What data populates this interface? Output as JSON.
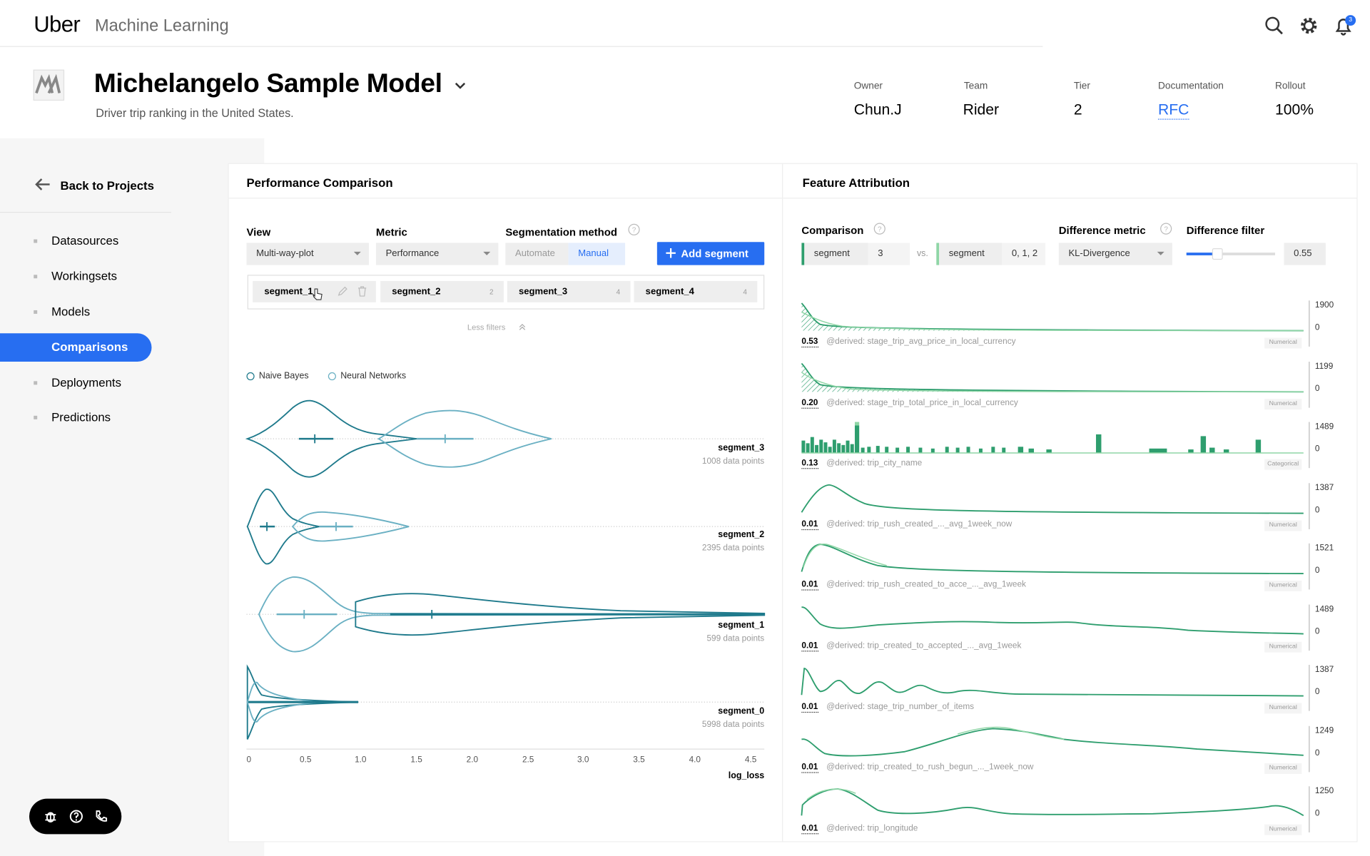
{
  "topbar": {
    "brand": "Uber",
    "product": "Machine Learning",
    "notifications": "3"
  },
  "model": {
    "title": "Michelangelo Sample  Model",
    "subtitle": "Driver trip ranking in the United States.",
    "meta": [
      {
        "label": "Owner",
        "value": "Chun.J"
      },
      {
        "label": "Team",
        "value": "Rider"
      },
      {
        "label": "Tier",
        "value": "2"
      },
      {
        "label": "Documentation",
        "value": "RFC"
      },
      {
        "label": "Rollout",
        "value": "100%"
      }
    ]
  },
  "sidebar": {
    "back": "Back to Projects",
    "items": [
      {
        "label": "Datasources"
      },
      {
        "label": "Workingsets"
      },
      {
        "label": "Models"
      },
      {
        "label": "Comparisons"
      },
      {
        "label": "Deployments"
      },
      {
        "label": "Predictions"
      }
    ],
    "active": "Comparisons"
  },
  "performance": {
    "title": "Performance Comparison",
    "view_label": "View",
    "view_value": "Multi-way-plot",
    "metric_label": "Metric",
    "metric_value": "Performance",
    "seg_method_label": "Segmentation method",
    "seg_auto": "Automate",
    "seg_manual": "Manual",
    "add_segment": "Add segment",
    "segments": [
      {
        "name": "segment_1",
        "count": ""
      },
      {
        "name": "segment_2",
        "count": "2"
      },
      {
        "name": "segment_3",
        "count": "4"
      },
      {
        "name": "segment_4",
        "count": "4"
      }
    ],
    "less_filters": "Less filters",
    "legend": [
      {
        "name": "Naive Bayes",
        "color": "#1f7a8c"
      },
      {
        "name": "Neural Networks",
        "color": "#6ab0c3"
      }
    ],
    "rows": [
      {
        "label": "segment_3",
        "points": "1008 data points"
      },
      {
        "label": "segment_2",
        "points": "2395 data points"
      },
      {
        "label": "segment_1",
        "points": "599 data points"
      },
      {
        "label": "segment_0",
        "points": "5998 data points"
      }
    ],
    "x_ticks": [
      "0",
      "0.5",
      "1.0",
      "1.5",
      "2.0",
      "2.5",
      "3.0",
      "3.5",
      "4.0",
      "4.5"
    ],
    "x_label": "log_loss"
  },
  "attribution": {
    "title": "Feature Attribution",
    "comparison_label": "Comparison",
    "left_key": "segment",
    "left_val": "3",
    "vs": "vs.",
    "right_key": "segment",
    "right_val": "0, 1, 2",
    "diff_metric_label": "Difference metric",
    "diff_metric_value": "KL-Divergence",
    "diff_filter_label": "Difference filter",
    "diff_filter_value": "0.55",
    "features": [
      {
        "value": "0.53",
        "name": "@derived: stage_trip_avg_price_in_local_currency",
        "type": "Numerical",
        "max": "1900",
        "zero": "0"
      },
      {
        "value": "0.20",
        "name": "@derived: stage_trip_total_price_in_local_currency",
        "type": "Numerical",
        "max": "1199",
        "zero": "0"
      },
      {
        "value": "0.13",
        "name": "@derived: trip_city_name",
        "type": "Categorical",
        "max": "1489",
        "zero": "0"
      },
      {
        "value": "0.01",
        "name": "@derived: trip_rush_created_..._avg_1week_now",
        "type": "Numerical",
        "max": "1387",
        "zero": "0"
      },
      {
        "value": "0.01",
        "name": "@derived: trip_rush_created_to_acce_..._avg_1week",
        "type": "Numerical",
        "max": "1521",
        "zero": "0"
      },
      {
        "value": "0.01",
        "name": "@derived: trip_created_to_accepted_..._avg_1week",
        "type": "Numerical",
        "max": "1489",
        "zero": "0"
      },
      {
        "value": "0.01",
        "name": "@derived: stage_trip_number_of_items",
        "type": "Numerical",
        "max": "1387",
        "zero": "0"
      },
      {
        "value": "0.01",
        "name": "@derived: trip_created_to_rush_begun_..._1week_now",
        "type": "Numerical",
        "max": "1249",
        "zero": "0"
      },
      {
        "value": "0.01",
        "name": "@derived: trip_longitude",
        "type": "Numerical",
        "max": "1250",
        "zero": "0"
      }
    ]
  }
}
